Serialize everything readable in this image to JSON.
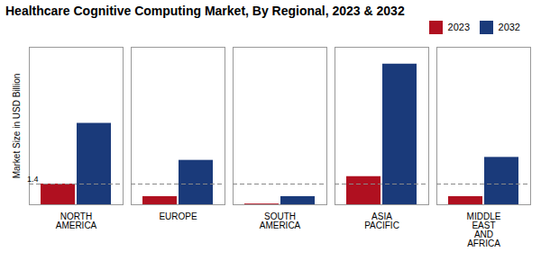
{
  "chart_data": {
    "type": "bar",
    "title": "Healthcare Cognitive Computing Market, By Regional, 2023 & 2032",
    "ylabel": "Market Size in USD Billion",
    "categories": [
      "NORTH\nAMERICA",
      "EUROPE",
      "SOUTH\nAMERICA",
      "ASIA\nPACIFIC",
      "MIDDLE\nEAST\nAND\nAFRICA"
    ],
    "series": [
      {
        "name": "2023",
        "color": "#b01020",
        "values": [
          1.4,
          0.55,
          0.05,
          1.9,
          0.55
        ]
      },
      {
        "name": "2032",
        "color": "#1a3a7a",
        "values": [
          5.5,
          3.0,
          0.55,
          9.5,
          3.2
        ]
      }
    ],
    "ylim": [
      0,
      10.64
    ],
    "tick_labels": "x",
    "grid": false,
    "legend": "top",
    "reference_line": {
      "y": 1.4,
      "line_style": "dashed"
    },
    "annotations": [
      {
        "text": "1.4",
        "category": "NORTH\nAMERICA",
        "series": "2023",
        "y": 1.4
      }
    ]
  }
}
